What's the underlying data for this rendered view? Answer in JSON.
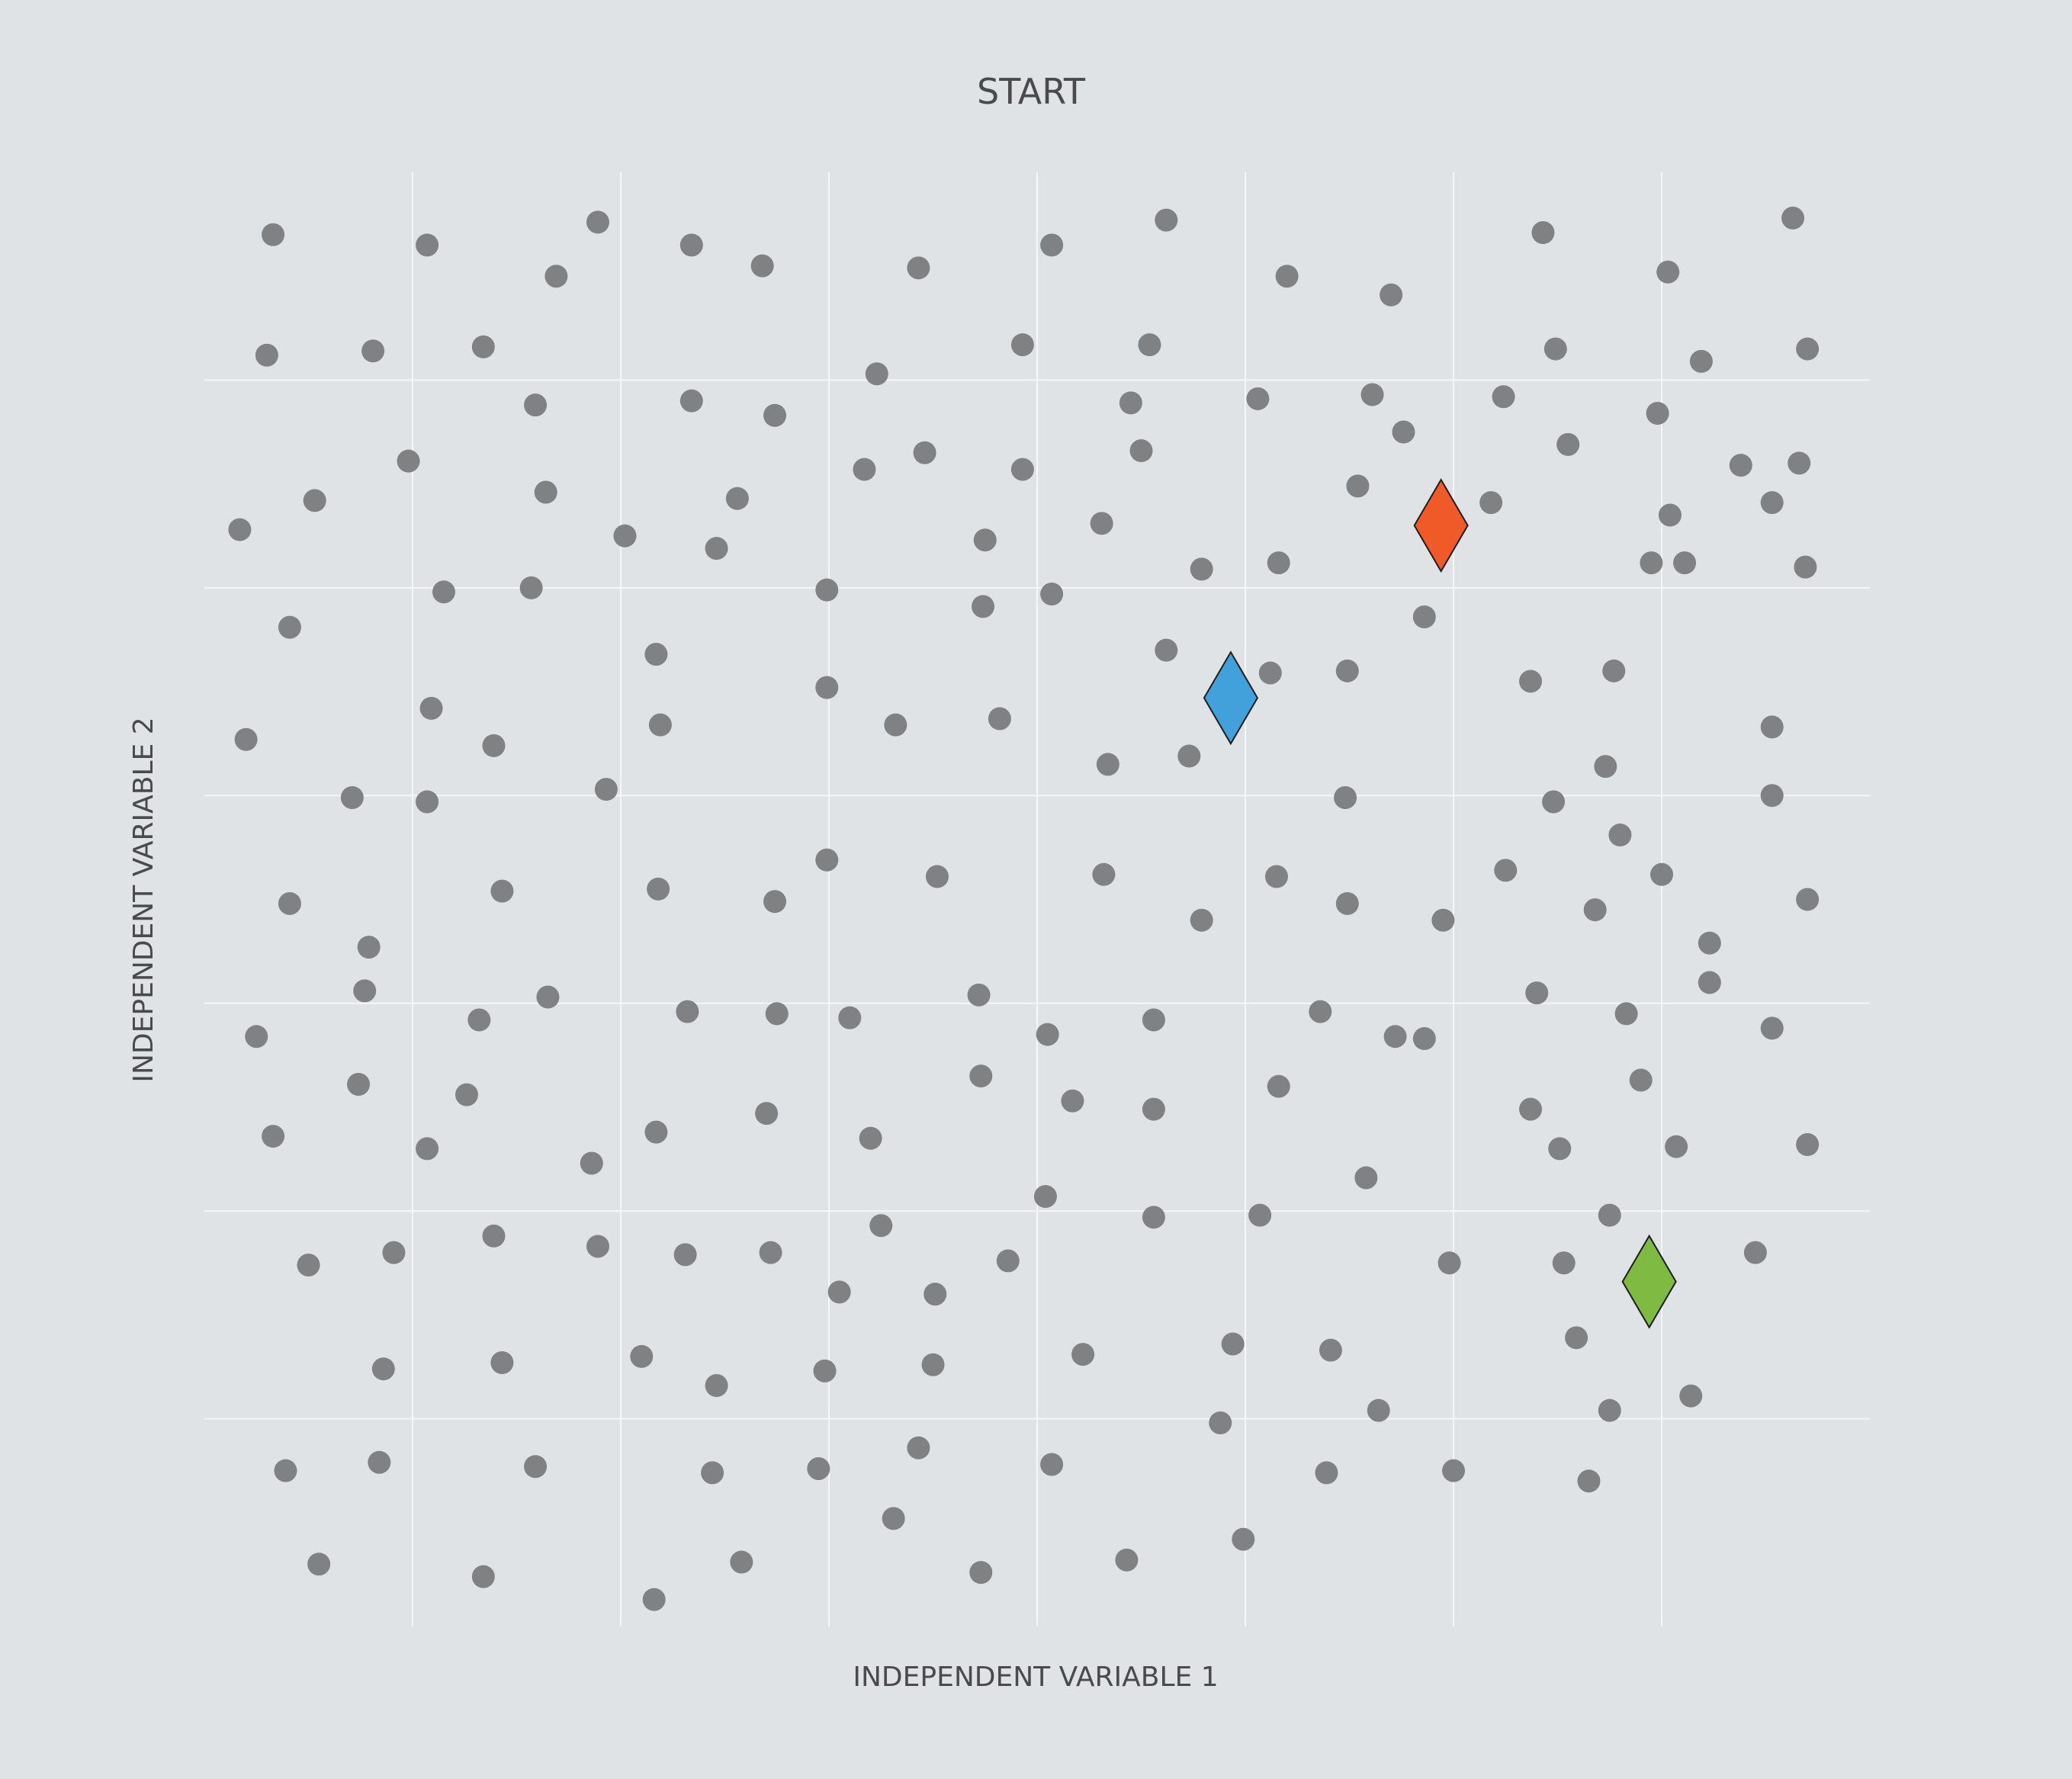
{
  "chart_data": {
    "type": "scatter",
    "title": "START",
    "xlabel": "INDEPENDENT VARIABLE 1",
    "ylabel": "INDEPENDENT VARIABLE 2",
    "xlim": [
      0,
      8
    ],
    "ylim": [
      0,
      7
    ],
    "grid": true,
    "x_gridlines": [
      1,
      2,
      3,
      4,
      5,
      6,
      7
    ],
    "y_gridlines": [
      1,
      2,
      3,
      4,
      5,
      6
    ],
    "colors": {
      "background": "#dfe3e6",
      "grid": "#f4f6f7",
      "points": "#7f8183",
      "marker_outline": "#1e1e1e",
      "text": "#4a4a4a"
    },
    "series": [
      {
        "name": "data points",
        "marker": "circle",
        "color": "#7f8183",
        "points": [
          [
            0.33,
            6.7
          ],
          [
            1.07,
            6.65
          ],
          [
            1.69,
            6.5
          ],
          [
            1.89,
            6.76
          ],
          [
            2.34,
            6.65
          ],
          [
            2.68,
            6.55
          ],
          [
            3.43,
            6.54
          ],
          [
            4.07,
            6.65
          ],
          [
            4.62,
            6.77
          ],
          [
            5.2,
            6.5
          ],
          [
            5.7,
            6.41
          ],
          [
            6.43,
            6.71
          ],
          [
            7.03,
            6.52
          ],
          [
            7.63,
            6.78
          ],
          [
            0.3,
            6.12
          ],
          [
            0.81,
            6.14
          ],
          [
            1.34,
            6.16
          ],
          [
            1.59,
            5.88
          ],
          [
            2.34,
            5.9
          ],
          [
            2.74,
            5.83
          ],
          [
            3.23,
            6.03
          ],
          [
            3.93,
            6.17
          ],
          [
            4.45,
            5.89
          ],
          [
            4.54,
            6.17
          ],
          [
            5.06,
            5.91
          ],
          [
            5.61,
            5.93
          ],
          [
            6.24,
            5.92
          ],
          [
            6.49,
            6.15
          ],
          [
            6.98,
            5.84
          ],
          [
            7.19,
            6.09
          ],
          [
            7.7,
            6.15
          ],
          [
            0.17,
            5.28
          ],
          [
            0.53,
            5.42
          ],
          [
            0.98,
            5.61
          ],
          [
            1.64,
            5.46
          ],
          [
            2.02,
            5.25
          ],
          [
            2.46,
            5.19
          ],
          [
            2.56,
            5.43
          ],
          [
            3.17,
            5.57
          ],
          [
            3.46,
            5.65
          ],
          [
            3.75,
            5.23
          ],
          [
            3.93,
            5.57
          ],
          [
            4.31,
            5.31
          ],
          [
            4.5,
            5.66
          ],
          [
            4.79,
            5.09
          ],
          [
            5.16,
            5.12
          ],
          [
            5.54,
            5.49
          ],
          [
            5.76,
            5.75
          ],
          [
            6.18,
            5.41
          ],
          [
            6.55,
            5.69
          ],
          [
            6.95,
            5.12
          ],
          [
            7.04,
            5.35
          ],
          [
            7.38,
            5.59
          ],
          [
            7.53,
            5.41
          ],
          [
            7.66,
            5.6
          ],
          [
            0.41,
            4.81
          ],
          [
            1.15,
            4.98
          ],
          [
            1.57,
            5.0
          ],
          [
            2.17,
            4.68
          ],
          [
            2.99,
            4.99
          ],
          [
            3.74,
            4.91
          ],
          [
            4.07,
            4.97
          ],
          [
            4.62,
            4.7
          ],
          [
            5.12,
            4.59
          ],
          [
            5.49,
            4.6
          ],
          [
            5.86,
            4.86
          ],
          [
            6.37,
            4.55
          ],
          [
            6.77,
            4.6
          ],
          [
            7.11,
            5.12
          ],
          [
            7.69,
            5.1
          ],
          [
            0.2,
            4.27
          ],
          [
            0.71,
            3.99
          ],
          [
            1.09,
            4.42
          ],
          [
            1.39,
            4.24
          ],
          [
            2.19,
            4.34
          ],
          [
            2.99,
            4.52
          ],
          [
            3.32,
            4.34
          ],
          [
            3.82,
            4.37
          ],
          [
            4.34,
            4.15
          ],
          [
            4.73,
            4.19
          ],
          [
            5.48,
            3.99
          ],
          [
            6.48,
            3.97
          ],
          [
            6.73,
            4.14
          ],
          [
            7.53,
            4.0
          ],
          [
            7.53,
            4.33
          ],
          [
            0.41,
            3.48
          ],
          [
            0.79,
            3.27
          ],
          [
            1.07,
            3.97
          ],
          [
            1.43,
            3.54
          ],
          [
            1.93,
            4.03
          ],
          [
            2.18,
            3.55
          ],
          [
            2.74,
            3.49
          ],
          [
            2.99,
            3.69
          ],
          [
            3.52,
            3.61
          ],
          [
            4.32,
            3.62
          ],
          [
            4.79,
            3.4
          ],
          [
            5.15,
            3.61
          ],
          [
            5.49,
            3.48
          ],
          [
            5.95,
            3.4
          ],
          [
            6.25,
            3.64
          ],
          [
            6.68,
            3.45
          ],
          [
            6.8,
            3.81
          ],
          [
            7.0,
            3.62
          ],
          [
            7.23,
            3.29
          ],
          [
            7.7,
            3.5
          ],
          [
            0.25,
            2.84
          ],
          [
            0.77,
            3.06
          ],
          [
            1.32,
            2.92
          ],
          [
            1.65,
            3.03
          ],
          [
            2.32,
            2.96
          ],
          [
            2.75,
            2.95
          ],
          [
            3.1,
            2.93
          ],
          [
            3.72,
            3.04
          ],
          [
            4.05,
            2.85
          ],
          [
            4.56,
            2.92
          ],
          [
            5.36,
            2.96
          ],
          [
            5.86,
            2.83
          ],
          [
            6.4,
            3.05
          ],
          [
            6.83,
            2.95
          ],
          [
            7.23,
            3.1
          ],
          [
            7.53,
            2.88
          ],
          [
            0.33,
            2.36
          ],
          [
            0.74,
            2.61
          ],
          [
            1.07,
            2.3
          ],
          [
            1.26,
            2.56
          ],
          [
            1.86,
            2.23
          ],
          [
            2.17,
            2.38
          ],
          [
            2.7,
            2.47
          ],
          [
            3.2,
            2.35
          ],
          [
            3.73,
            2.65
          ],
          [
            4.17,
            2.53
          ],
          [
            4.56,
            2.49
          ],
          [
            5.16,
            2.6
          ],
          [
            5.72,
            2.84
          ],
          [
            6.37,
            2.49
          ],
          [
            6.51,
            2.3
          ],
          [
            6.9,
            2.63
          ],
          [
            7.07,
            2.31
          ],
          [
            7.7,
            2.32
          ],
          [
            0.5,
            1.74
          ],
          [
            0.91,
            1.8
          ],
          [
            1.39,
            1.88
          ],
          [
            1.89,
            1.83
          ],
          [
            2.31,
            1.79
          ],
          [
            2.72,
            1.8
          ],
          [
            3.05,
            1.61
          ],
          [
            3.25,
            1.93
          ],
          [
            3.51,
            1.6
          ],
          [
            3.86,
            1.76
          ],
          [
            4.04,
            2.07
          ],
          [
            4.56,
            1.97
          ],
          [
            5.07,
            1.98
          ],
          [
            5.58,
            2.16
          ],
          [
            5.98,
            1.75
          ],
          [
            6.53,
            1.75
          ],
          [
            6.75,
            1.98
          ],
          [
            7.45,
            1.8
          ],
          [
            0.86,
            1.24
          ],
          [
            1.43,
            1.27
          ],
          [
            2.1,
            1.3
          ],
          [
            2.46,
            1.16
          ],
          [
            2.98,
            1.23
          ],
          [
            3.5,
            1.26
          ],
          [
            4.22,
            1.31
          ],
          [
            4.94,
            1.36
          ],
          [
            5.41,
            1.33
          ],
          [
            5.64,
            1.04
          ],
          [
            6.59,
            1.39
          ],
          [
            6.75,
            1.04
          ],
          [
            7.14,
            1.11
          ],
          [
            0.39,
            0.75
          ],
          [
            0.84,
            0.79
          ],
          [
            1.59,
            0.77
          ],
          [
            2.44,
            0.74
          ],
          [
            2.95,
            0.76
          ],
          [
            3.43,
            0.86
          ],
          [
            4.07,
            0.78
          ],
          [
            4.88,
            0.98
          ],
          [
            5.39,
            0.74
          ],
          [
            6.0,
            0.75
          ],
          [
            6.65,
            0.7
          ],
          [
            0.55,
            0.3
          ],
          [
            1.34,
            0.24
          ],
          [
            2.16,
            0.13
          ],
          [
            2.58,
            0.31
          ],
          [
            3.31,
            0.52
          ],
          [
            3.73,
            0.26
          ],
          [
            4.43,
            0.32
          ],
          [
            4.99,
            0.42
          ]
        ]
      },
      {
        "name": "orange marker",
        "marker": "diamond",
        "color": "#f05a28",
        "points": [
          [
            5.94,
            5.3
          ]
        ]
      },
      {
        "name": "blue marker",
        "marker": "diamond",
        "color": "#42a0db",
        "points": [
          [
            4.93,
            4.47
          ]
        ]
      },
      {
        "name": "green marker",
        "marker": "diamond",
        "color": "#7fba42",
        "points": [
          [
            6.94,
            1.66
          ]
        ]
      }
    ]
  }
}
